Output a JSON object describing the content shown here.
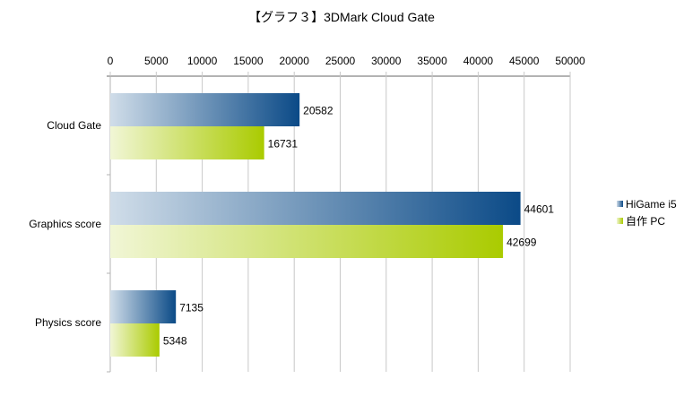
{
  "chart_data": {
    "type": "bar",
    "orientation": "horizontal",
    "title": "【グラフ３】3DMark Cloud Gate",
    "categories": [
      "Cloud Gate",
      "Graphics score",
      "Physics score"
    ],
    "series": [
      {
        "name": "HiGame i5",
        "values": [
          20582,
          44601,
          7135
        ],
        "color": "#0b4a87",
        "color_light": "#d0dde9"
      },
      {
        "name": "自作 PC",
        "values": [
          16731,
          42699,
          5348
        ],
        "color": "#aacb00",
        "color_light": "#f1f6d6"
      }
    ],
    "xlim": [
      0,
      50000
    ],
    "xticks": [
      0,
      5000,
      10000,
      15000,
      20000,
      25000,
      30000,
      35000,
      40000,
      45000,
      50000
    ],
    "xaxis_position": "top",
    "grid": true,
    "legend": "right",
    "xlabel": "",
    "ylabel": ""
  }
}
